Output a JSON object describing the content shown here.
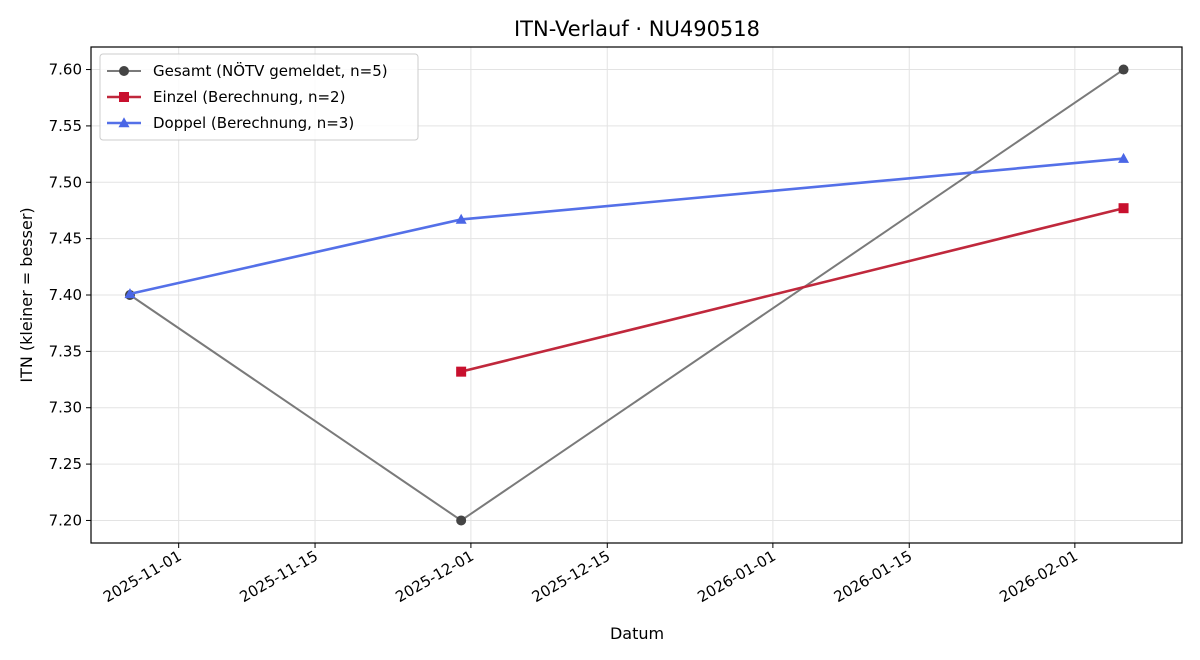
{
  "chart_data": {
    "type": "line",
    "title": "ITN-Verlauf · NU490518",
    "xlabel": "Datum",
    "ylabel": "ITN  (kleiner = besser)",
    "xlim": [
      "2025-10-23",
      "2026-02-12"
    ],
    "ylim": [
      7.18,
      7.62
    ],
    "x_ticks": [
      "2025-11-01",
      "2025-11-15",
      "2025-12-01",
      "2025-12-15",
      "2026-01-01",
      "2026-01-15",
      "2026-02-01"
    ],
    "y_ticks": [
      7.2,
      7.25,
      7.3,
      7.35,
      7.4,
      7.45,
      7.5,
      7.55,
      7.6
    ],
    "grid": true,
    "legend_position": "upper-left",
    "series": [
      {
        "name": "Gesamt (NÖTV gemeldet, n=5)",
        "color": "#7a7a7a",
        "marker_color": "#444444",
        "marker": "circle",
        "x": [
          "2025-10-27",
          "2025-11-30",
          "2026-02-06"
        ],
        "y": [
          7.4,
          7.2,
          7.6
        ]
      },
      {
        "name": "Einzel (Berechnung, n=2)",
        "color": "#c0283c",
        "marker_color": "#c8102e",
        "marker": "square",
        "x": [
          "2025-11-30",
          "2026-02-06"
        ],
        "y": [
          7.332,
          7.477
        ]
      },
      {
        "name": "Doppel (Berechnung, n=3)",
        "color": "#5470e8",
        "marker_color": "#4a66e6",
        "marker": "triangle",
        "x": [
          "2025-10-27",
          "2025-11-30",
          "2026-02-06"
        ],
        "y": [
          7.401,
          7.467,
          7.521
        ]
      }
    ]
  }
}
